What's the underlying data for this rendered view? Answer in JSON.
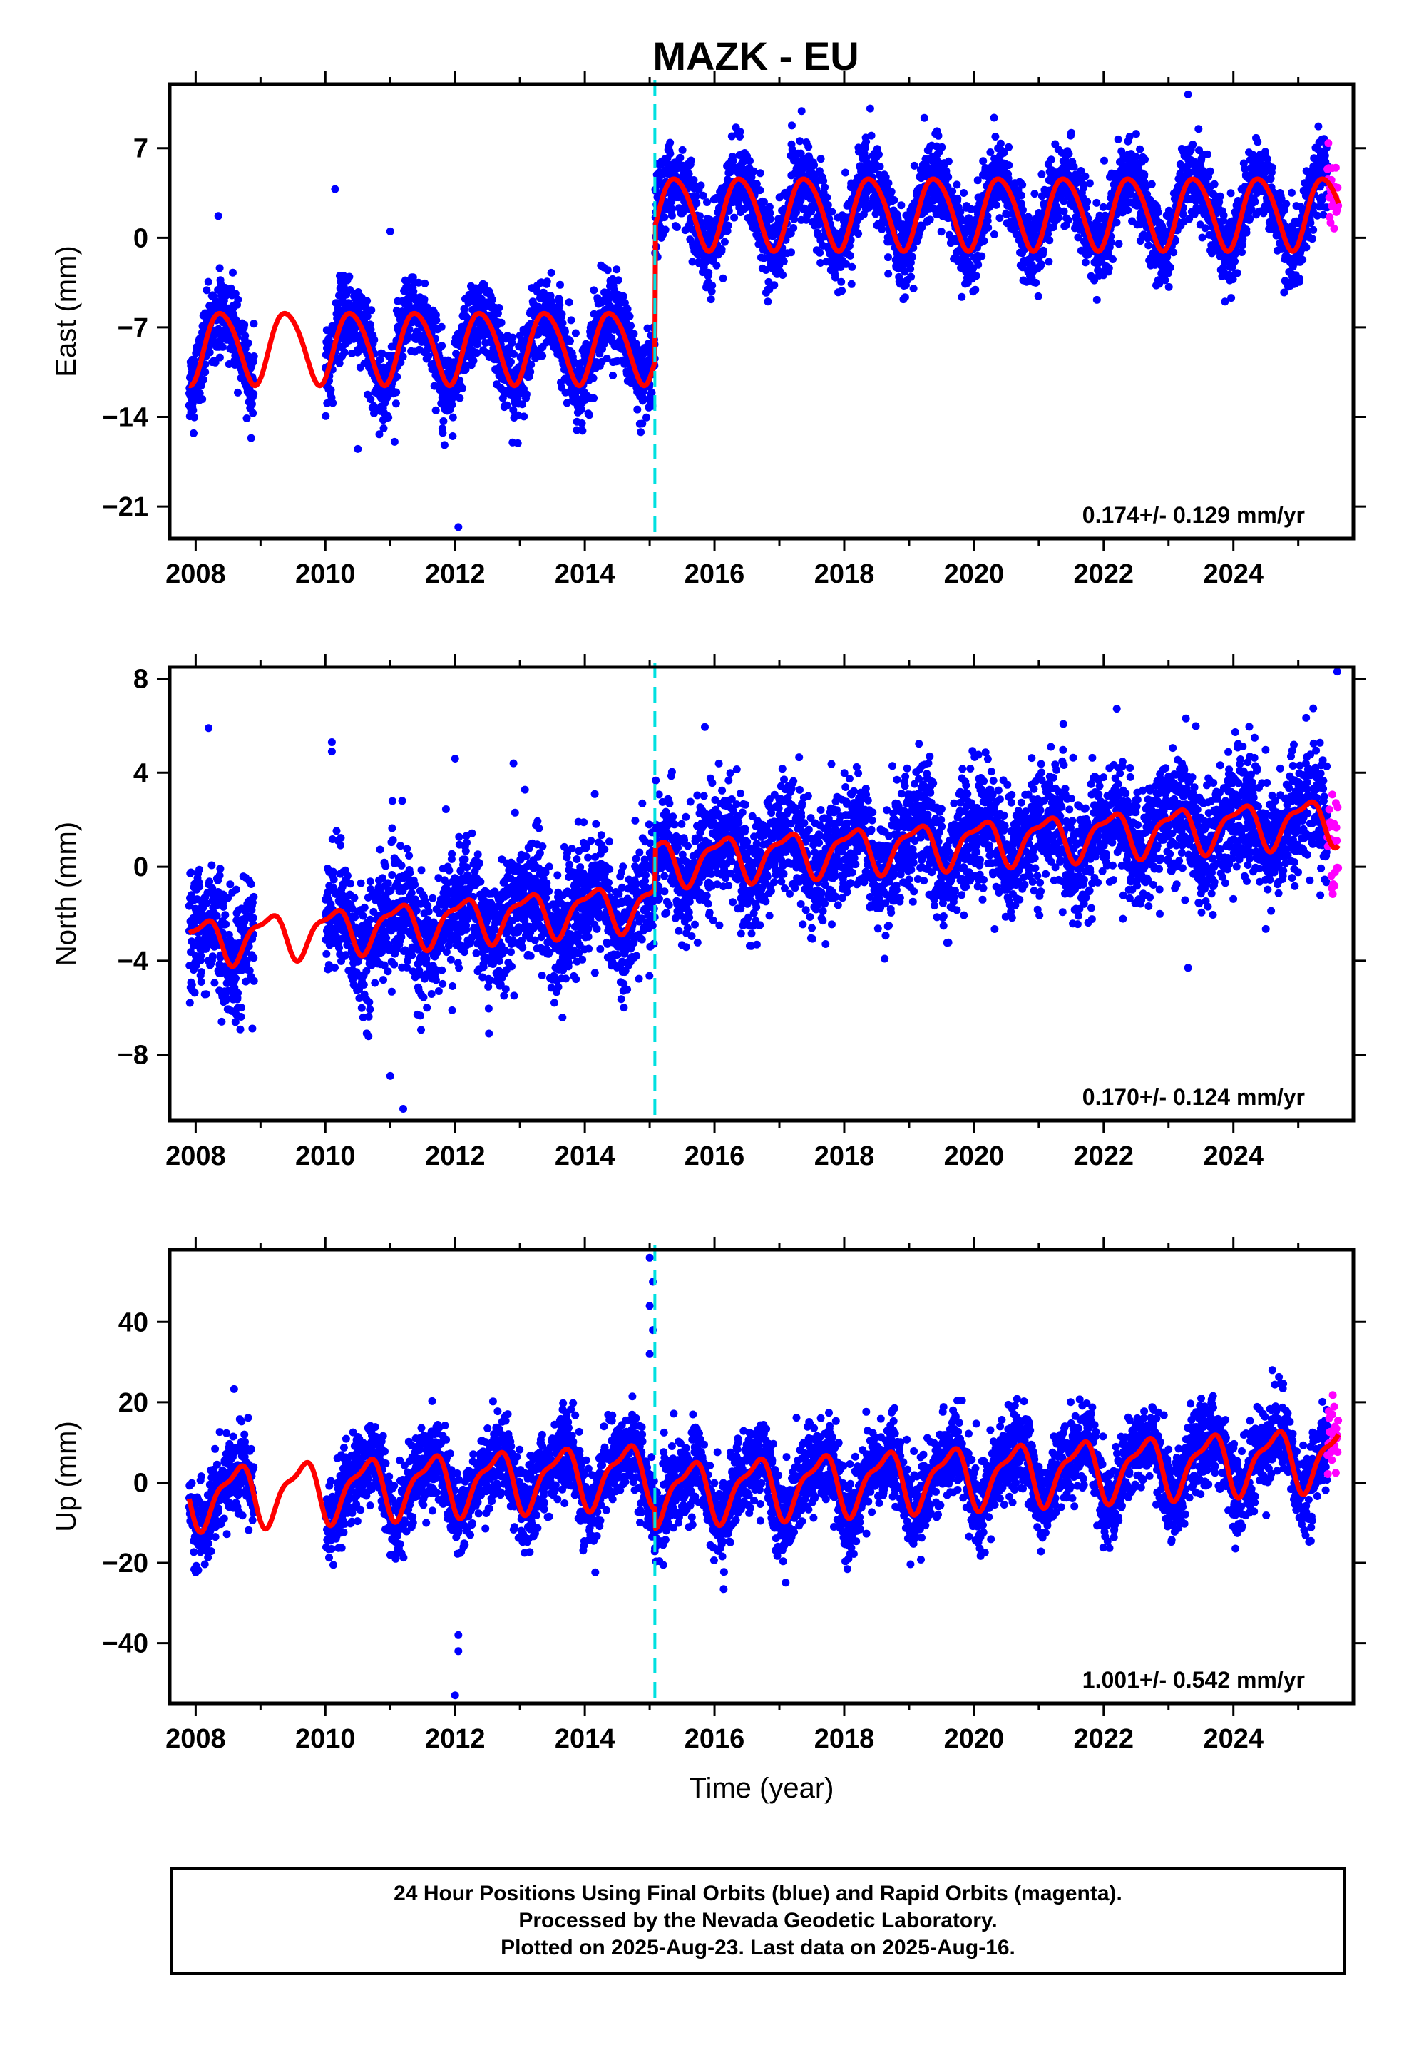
{
  "title": "MAZK - EU",
  "colors": {
    "final_orbits": "#0000ff",
    "rapid_orbits": "#ff00ff",
    "model": "#ff0000",
    "antenna_change": "#00e0e0",
    "frame": "#000000"
  },
  "chart_data": [
    {
      "type": "scatter",
      "component": "east",
      "ylabel": "East (mm)",
      "xlabel": "",
      "xlim": [
        2007.6,
        2025.85
      ],
      "ylim": [
        -23.5,
        12
      ],
      "yticks": [
        7,
        0,
        -7,
        -14,
        -21
      ],
      "yticklabels": [
        "7",
        "0",
        "-7",
        "-14",
        "-21"
      ],
      "xticks": [
        2008,
        2010,
        2012,
        2014,
        2016,
        2018,
        2020,
        2022,
        2024
      ],
      "xticklabels": [
        "2008",
        "2010",
        "2012",
        "2014",
        "2016",
        "2018",
        "2020",
        "2022",
        "2024"
      ],
      "rate": "0.174+/- 0.129 mm/yr",
      "offset_epoch": 2015.08,
      "series": [
        {
          "kind": "final_orbits",
          "x_range": [
            2007.9,
            2025.45
          ],
          "gaps": [
            [
              2008.9,
              2010.0
            ]
          ]
        },
        {
          "kind": "rapid_orbits",
          "x_range": [
            2025.45,
            2025.62
          ]
        },
        {
          "kind": "model",
          "x_range": [
            2007.9,
            2025.62
          ],
          "pre_offset_mean": -8.5,
          "post_offset_mean": 2.0,
          "annual_amplitude": 2.8,
          "annual_phase_peak": 0.4
        }
      ],
      "outliers": [
        [
          2008.35,
          1.7
        ],
        [
          2010.5,
          -16.5
        ],
        [
          2012.05,
          -22.6
        ],
        [
          2010.15,
          3.8
        ],
        [
          2011.0,
          0.5
        ],
        [
          2018.4,
          10.1
        ],
        [
          2023.3,
          11.2
        ]
      ]
    },
    {
      "type": "scatter",
      "component": "north",
      "ylabel": "North (mm)",
      "xlabel": "",
      "xlim": [
        2007.6,
        2025.85
      ],
      "ylim": [
        -10.8,
        8.5
      ],
      "yticks": [
        8,
        4,
        0,
        -4,
        -8
      ],
      "yticklabels": [
        "8",
        "4",
        "0",
        "-4",
        "-8"
      ],
      "xticks": [
        2008,
        2010,
        2012,
        2014,
        2016,
        2018,
        2020,
        2022,
        2024
      ],
      "xticklabels": [
        "2008",
        "2010",
        "2012",
        "2014",
        "2016",
        "2018",
        "2020",
        "2022",
        "2024"
      ],
      "rate": "0.170+/- 0.124 mm/yr",
      "offset_epoch": 2015.08,
      "series": [
        {
          "kind": "final_orbits",
          "x_range": [
            2007.9,
            2025.45
          ],
          "gaps": [
            [
              2008.9,
              2010.0
            ]
          ]
        },
        {
          "kind": "rapid_orbits",
          "x_range": [
            2025.45,
            2025.62
          ]
        },
        {
          "kind": "model",
          "x_range": [
            2007.9,
            2025.62
          ],
          "pre_offset_start": -3.2,
          "pre_offset_end": -1.6,
          "post_offset_start": 0.2,
          "post_offset_end": 2.0,
          "annual_amplitude": 0.9,
          "annual_phase_peak": 0.1
        }
      ],
      "outliers": [
        [
          2008.2,
          5.9
        ],
        [
          2010.1,
          5.3
        ],
        [
          2010.1,
          4.9
        ],
        [
          2011.2,
          -10.3
        ],
        [
          2011.0,
          -8.9
        ],
        [
          2012.0,
          4.6
        ],
        [
          2012.9,
          4.4
        ],
        [
          2023.3,
          -4.3
        ],
        [
          2025.6,
          8.3
        ]
      ]
    },
    {
      "type": "scatter",
      "component": "up",
      "ylabel": "Up (mm)",
      "xlabel": "Time (year)",
      "xlim": [
        2007.6,
        2025.85
      ],
      "ylim": [
        -55,
        58
      ],
      "yticks": [
        40,
        20,
        0,
        -20,
        -40
      ],
      "yticklabels": [
        "40",
        "20",
        "0",
        "-20",
        "-40"
      ],
      "xticks": [
        2008,
        2010,
        2012,
        2014,
        2016,
        2018,
        2020,
        2022,
        2024
      ],
      "xticklabels": [
        "2008",
        "2010",
        "2012",
        "2014",
        "2016",
        "2018",
        "2020",
        "2022",
        "2024"
      ],
      "rate": "1.001+/- 0.542 mm/yr",
      "offset_epoch": 2015.08,
      "series": [
        {
          "kind": "final_orbits",
          "x_range": [
            2007.9,
            2025.45
          ],
          "gaps": [
            [
              2008.9,
              2010.0
            ]
          ]
        },
        {
          "kind": "rapid_orbits",
          "x_range": [
            2025.45,
            2025.62
          ]
        },
        {
          "kind": "model",
          "x_range": [
            2007.9,
            2025.62
          ],
          "pre_offset_start": -3.5,
          "pre_offset_end": 2.5,
          "post_offset_start": -2.5,
          "post_offset_end": 6.5,
          "annual_amplitude": 7.0,
          "annual_phase_peak": 0.62
        }
      ],
      "outliers": [
        [
          2012.0,
          -53
        ],
        [
          2012.05,
          -42
        ],
        [
          2012.05,
          -38
        ],
        [
          2015.0,
          56
        ],
        [
          2015.05,
          50
        ],
        [
          2015.0,
          44
        ],
        [
          2015.05,
          38
        ],
        [
          2015.0,
          32
        ],
        [
          2024.6,
          28
        ]
      ]
    }
  ],
  "footer": {
    "line1": "24 Hour Positions Using Final Orbits (blue) and Rapid Orbits (magenta).",
    "line2": "Processed by the Nevada Geodetic Laboratory.",
    "line3": "Plotted on 2025-Aug-23. Last data on 2025-Aug-16."
  }
}
